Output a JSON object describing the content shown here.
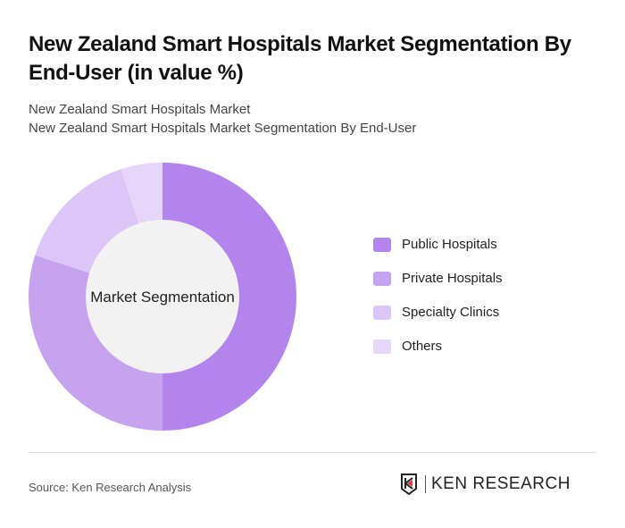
{
  "title": "New Zealand Smart Hospitals Market Segmentation By End-User (in value %)",
  "subtitle1": "New Zealand Smart Hospitals Market",
  "subtitle2": "New Zealand Smart Hospitals Market Segmentation By End-User",
  "source": "Source: Ken Research Analysis",
  "logo_text": "KEN RESEARCH",
  "chart_data": {
    "type": "pie",
    "variant": "donut",
    "center_label": "Market Segmentation",
    "categories": [
      "Public Hospitals",
      "Private Hospitals",
      "Specialty Clinics",
      "Others"
    ],
    "values": [
      50,
      30,
      15,
      5
    ],
    "colors": [
      "#b385ec",
      "#c6a2ef",
      "#dcc6f7",
      "#e6d6f9"
    ],
    "legend_position": "right"
  }
}
